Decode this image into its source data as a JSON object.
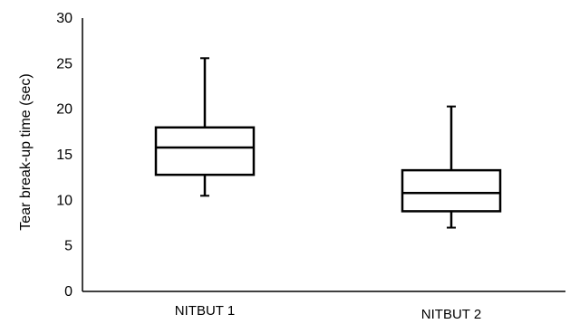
{
  "chart_data": {
    "type": "boxplot",
    "title": "",
    "xlabel": "",
    "ylabel": "Tear break-up time (sec)",
    "ylim": [
      0,
      30
    ],
    "yticks": [
      0,
      5,
      10,
      15,
      20,
      25,
      30
    ],
    "grid": false,
    "categories": [
      "NITBUT 1",
      "NITBUT 2"
    ],
    "boxes": [
      {
        "category": "NITBUT 1",
        "min": 10.5,
        "q1": 12.8,
        "median": 15.8,
        "q3": 18.0,
        "max": 25.6
      },
      {
        "category": "NITBUT 2",
        "min": 7.0,
        "q1": 8.8,
        "median": 10.8,
        "q3": 13.3,
        "max": 20.3
      }
    ],
    "colors": {
      "stroke": "#000000",
      "fill": "#ffffff"
    }
  }
}
